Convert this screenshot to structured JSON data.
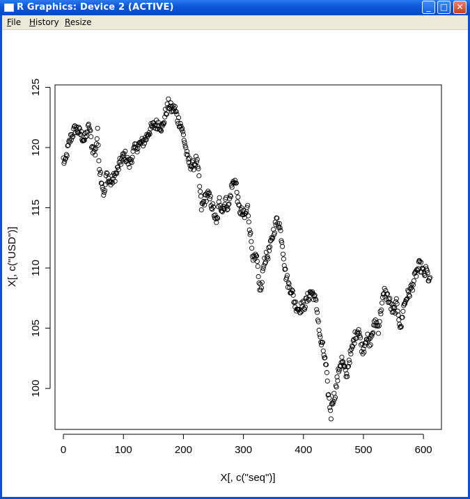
{
  "window": {
    "title": "R Graphics: Device 2 (ACTIVE)",
    "controls": {
      "minimize": "_",
      "maximize": "□",
      "close": "✕"
    }
  },
  "menu": {
    "items": [
      {
        "label": "File",
        "accel": "F",
        "rest": "ile"
      },
      {
        "label": "History",
        "accel": "H",
        "rest": "istory"
      },
      {
        "label": "Resize",
        "accel": "R",
        "rest": "esize"
      }
    ]
  },
  "chart_data": {
    "type": "scatter",
    "title": "",
    "xlabel": "X[, c(\"seq\")]",
    "ylabel": "X[, c(\"USD\")]",
    "xlim": [
      -14,
      630
    ],
    "ylim": [
      96.6,
      125.2
    ],
    "xticks": [
      0,
      100,
      200,
      300,
      400,
      500,
      600
    ],
    "yticks": [
      100,
      105,
      110,
      115,
      120,
      125
    ],
    "marker": "open-circle",
    "grid": false,
    "anchors": [
      [
        0,
        119.0
      ],
      [
        3,
        118.6
      ],
      [
        6,
        119.6
      ],
      [
        12,
        120.8
      ],
      [
        20,
        121.6
      ],
      [
        28,
        121.2
      ],
      [
        35,
        120.6
      ],
      [
        43,
        121.8
      ],
      [
        48,
        120.0
      ],
      [
        53,
        119.6
      ],
      [
        57,
        121.2
      ],
      [
        60,
        118.4
      ],
      [
        64,
        117.2
      ],
      [
        68,
        116.0
      ],
      [
        72,
        117.8
      ],
      [
        78,
        117.0
      ],
      [
        88,
        117.8
      ],
      [
        95,
        118.8
      ],
      [
        102,
        119.4
      ],
      [
        110,
        118.6
      ],
      [
        118,
        119.8
      ],
      [
        125,
        120.2
      ],
      [
        132,
        120.4
      ],
      [
        138,
        120.8
      ],
      [
        143,
        121.4
      ],
      [
        150,
        121.8
      ],
      [
        158,
        122.0
      ],
      [
        165,
        121.6
      ],
      [
        170,
        122.8
      ],
      [
        175,
        123.6
      ],
      [
        180,
        123.2
      ],
      [
        186,
        123.2
      ],
      [
        190,
        122.4
      ],
      [
        195,
        122.0
      ],
      [
        200,
        121.0
      ],
      [
        203,
        120.2
      ],
      [
        207,
        119.0
      ],
      [
        215,
        118.4
      ],
      [
        222,
        119.0
      ],
      [
        226,
        117.4
      ],
      [
        230,
        115.0
      ],
      [
        235,
        115.6
      ],
      [
        240,
        116.2
      ],
      [
        245,
        115.6
      ],
      [
        250,
        114.8
      ],
      [
        255,
        113.6
      ],
      [
        260,
        115.6
      ],
      [
        265,
        114.8
      ],
      [
        270,
        115.6
      ],
      [
        275,
        115.0
      ],
      [
        280,
        116.6
      ],
      [
        285,
        117.4
      ],
      [
        288,
        116.8
      ],
      [
        292,
        115.0
      ],
      [
        297,
        114.6
      ],
      [
        302,
        114.2
      ],
      [
        307,
        115.0
      ],
      [
        312,
        112.6
      ],
      [
        317,
        110.6
      ],
      [
        322,
        110.8
      ],
      [
        326,
        108.6
      ],
      [
        330,
        108.2
      ],
      [
        334,
        110.6
      ],
      [
        340,
        111.0
      ],
      [
        345,
        111.8
      ],
      [
        350,
        113.0
      ],
      [
        356,
        114.0
      ],
      [
        360,
        113.6
      ],
      [
        365,
        112.0
      ],
      [
        370,
        109.6
      ],
      [
        375,
        108.6
      ],
      [
        380,
        108.2
      ],
      [
        386,
        107.0
      ],
      [
        392,
        106.6
      ],
      [
        398,
        106.8
      ],
      [
        403,
        107.0
      ],
      [
        408,
        107.6
      ],
      [
        412,
        108.0
      ],
      [
        417,
        107.8
      ],
      [
        421,
        107.0
      ],
      [
        424,
        106.0
      ],
      [
        428,
        104.0
      ],
      [
        432,
        103.4
      ],
      [
        435,
        102.6
      ],
      [
        438,
        101.6
      ],
      [
        440,
        100.2
      ],
      [
        443,
        99.0
      ],
      [
        446,
        97.8
      ],
      [
        448,
        99.0
      ],
      [
        452,
        99.4
      ],
      [
        456,
        100.6
      ],
      [
        460,
        101.8
      ],
      [
        464,
        102.4
      ],
      [
        468,
        101.6
      ],
      [
        472,
        101.0
      ],
      [
        476,
        102.4
      ],
      [
        480,
        103.0
      ],
      [
        484,
        104.0
      ],
      [
        488,
        104.6
      ],
      [
        492,
        105.0
      ],
      [
        496,
        103.6
      ],
      [
        500,
        103.2
      ],
      [
        505,
        104.4
      ],
      [
        510,
        103.6
      ],
      [
        515,
        104.6
      ],
      [
        520,
        105.6
      ],
      [
        525,
        105.0
      ],
      [
        530,
        106.8
      ],
      [
        535,
        108.0
      ],
      [
        540,
        107.6
      ],
      [
        545,
        107.0
      ],
      [
        550,
        106.2
      ],
      [
        555,
        107.0
      ],
      [
        558,
        106.4
      ],
      [
        562,
        104.8
      ],
      [
        566,
        106.6
      ],
      [
        572,
        107.6
      ],
      [
        577,
        108.0
      ],
      [
        582,
        108.6
      ],
      [
        588,
        109.6
      ],
      [
        593,
        110.2
      ],
      [
        597,
        110.0
      ],
      [
        601,
        109.4
      ],
      [
        605,
        109.8
      ],
      [
        608,
        109.2
      ],
      [
        611,
        108.8
      ]
    ]
  }
}
